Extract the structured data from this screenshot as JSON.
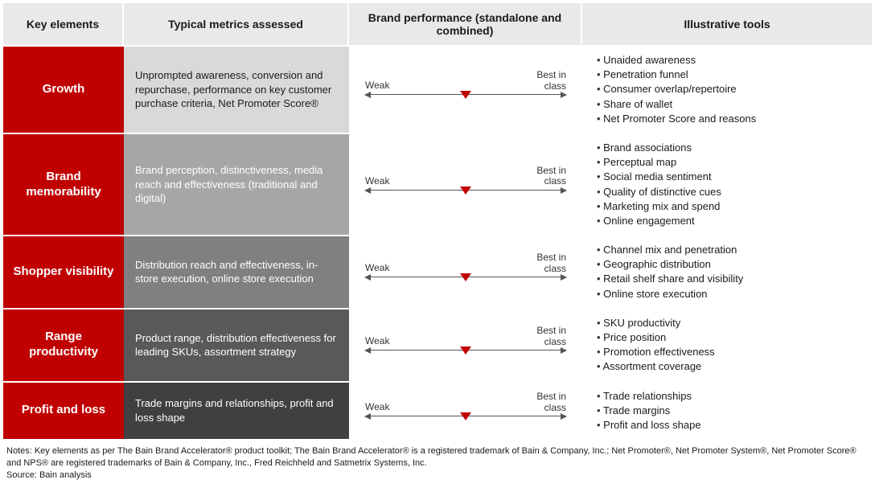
{
  "headers": [
    "Key elements",
    "Typical metrics assessed",
    "Brand performance (standalone and combined)",
    "Illustrative tools"
  ],
  "scale": {
    "left": "Weak",
    "right": "Best in\nclass"
  },
  "key_color": "#c00000",
  "marker_color": "#c00000",
  "rows": [
    {
      "key": "Growth",
      "metric_bg": "#d9d9d9",
      "metrics": "Unprompted awareness, conversion and repurchase, performance on key customer purchase criteria, Net Promoter Score®",
      "marker_pos": 0.5,
      "tools": [
        "Unaided awareness",
        "Penetration funnel",
        "Consumer overlap/repertoire",
        "Share of wallet",
        "Net Promoter Score and reasons"
      ]
    },
    {
      "key": "Brand memorability",
      "metric_bg": "#a6a6a6",
      "metrics": "Brand perception, distinctiveness, media reach and effectiveness (traditional and digital)",
      "marker_pos": 0.5,
      "tools": [
        "Brand associations",
        "Perceptual map",
        "Social media sentiment",
        "Quality of distinctive cues",
        "Marketing mix and spend",
        "Online engagement"
      ]
    },
    {
      "key": "Shopper visibility",
      "metric_bg": "#808080",
      "metrics": "Distribution reach and effectiveness, in-store execution, online store execution",
      "marker_pos": 0.5,
      "tools": [
        "Channel mix and penetration",
        "Geographic distribution",
        "Retail shelf share and visibility",
        "Online store execution"
      ]
    },
    {
      "key": "Range productivity",
      "metric_bg": "#595959",
      "metrics": "Product range, distribution effectiveness for leading SKUs, assortment strategy",
      "marker_pos": 0.5,
      "tools": [
        "SKU productivity",
        "Price position",
        "Promotion effectiveness",
        "Assortment coverage"
      ]
    },
    {
      "key": "Profit and loss",
      "metric_bg": "#404040",
      "metrics": "Trade margins and relationships, profit and loss shape",
      "marker_pos": 0.5,
      "tools": [
        "Trade relationships",
        "Trade margins",
        "Profit and loss shape"
      ]
    }
  ],
  "notes": "Notes: Key elements as per The Bain Brand Accelerator® product toolkit; The Bain Brand Accelerator® is a registered trademark of Bain & Company, Inc.; Net Promoter®, Net Promoter System®, Net Promoter Score® and NPS® are registered trademarks of Bain & Company, Inc., Fred Reichheld and Satmetrix Systems, Inc.",
  "source": "Source: Bain analysis"
}
